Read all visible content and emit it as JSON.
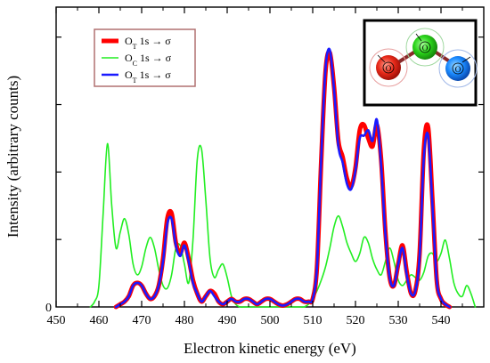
{
  "chart_data": {
    "type": "line",
    "xlabel": "Electron kinetic energy (eV)",
    "ylabel": "Intensity (arbitrary counts)",
    "xlim": [
      450,
      550
    ],
    "ylim": [
      0,
      1.12
    ],
    "x_ticks": [
      450,
      460,
      470,
      480,
      490,
      500,
      510,
      520,
      530,
      540
    ],
    "y_ticks": [
      0
    ],
    "legend_position": "top-left",
    "inset": {
      "position": "top-right",
      "atom_labels": [
        "O",
        "O",
        "O"
      ]
    },
    "series": [
      {
        "name": "O",
        "name_sub": "T",
        "name_rest": " 1s → σ",
        "color": "#ff0000",
        "x": [
          464,
          465,
          466,
          467,
          468,
          469,
          470,
          471,
          472,
          473,
          474,
          475,
          476,
          477,
          478,
          479,
          480,
          481,
          482,
          483,
          484,
          485,
          486,
          487,
          488,
          489,
          490,
          491,
          492,
          493,
          494,
          495,
          496,
          497,
          498,
          499,
          500,
          501,
          502,
          503,
          504,
          505,
          506,
          507,
          508,
          509,
          510,
          511,
          512,
          513,
          514,
          515,
          516,
          517,
          518,
          519,
          520,
          521,
          522,
          523,
          524,
          525,
          526,
          527,
          528,
          529,
          530,
          531,
          532,
          533,
          534,
          535,
          536,
          537,
          538,
          539,
          540,
          541,
          542
        ],
        "y": [
          0.0,
          0.01,
          0.02,
          0.04,
          0.08,
          0.09,
          0.08,
          0.05,
          0.03,
          0.04,
          0.08,
          0.18,
          0.33,
          0.35,
          0.24,
          0.2,
          0.24,
          0.18,
          0.1,
          0.05,
          0.02,
          0.04,
          0.06,
          0.05,
          0.02,
          0.01,
          0.02,
          0.03,
          0.02,
          0.02,
          0.03,
          0.03,
          0.02,
          0.01,
          0.02,
          0.03,
          0.03,
          0.02,
          0.01,
          0.005,
          0.01,
          0.02,
          0.03,
          0.03,
          0.02,
          0.02,
          0.03,
          0.15,
          0.55,
          0.88,
          0.95,
          0.82,
          0.62,
          0.56,
          0.48,
          0.45,
          0.52,
          0.66,
          0.68,
          0.63,
          0.6,
          0.68,
          0.55,
          0.28,
          0.11,
          0.08,
          0.16,
          0.23,
          0.13,
          0.05,
          0.06,
          0.2,
          0.59,
          0.67,
          0.4,
          0.1,
          0.03,
          0.01,
          0.0
        ]
      },
      {
        "name": "O",
        "name_sub": "C",
        "name_rest": " 1s → σ",
        "color": "#22ee22",
        "x": [
          458,
          459,
          460,
          461,
          462,
          463,
          464,
          465,
          466,
          467,
          468,
          469,
          470,
          471,
          472,
          473,
          474,
          475,
          476,
          477,
          478,
          479,
          480,
          481,
          482,
          483,
          484,
          485,
          486,
          487,
          488,
          489,
          490,
          491,
          492,
          493,
          494,
          495,
          496,
          497,
          498,
          499,
          500,
          501,
          502,
          503,
          504,
          505,
          506,
          507,
          508,
          509,
          510,
          511,
          512,
          513,
          514,
          515,
          516,
          517,
          518,
          519,
          520,
          521,
          522,
          523,
          524,
          525,
          526,
          527,
          528,
          529,
          530,
          531,
          532,
          533,
          534,
          535,
          536,
          537,
          538,
          539,
          540,
          541,
          542,
          543,
          544,
          545,
          546,
          547,
          548
        ],
        "y": [
          0.0,
          0.02,
          0.08,
          0.35,
          0.61,
          0.38,
          0.22,
          0.28,
          0.33,
          0.27,
          0.16,
          0.12,
          0.15,
          0.22,
          0.26,
          0.22,
          0.14,
          0.08,
          0.07,
          0.12,
          0.22,
          0.23,
          0.16,
          0.09,
          0.25,
          0.55,
          0.59,
          0.4,
          0.18,
          0.11,
          0.14,
          0.16,
          0.11,
          0.04,
          0.01,
          0.0,
          0.0,
          0.0,
          0.0,
          0.0,
          0.0,
          0.0,
          0.0,
          0.0,
          0.0,
          0.0,
          0.0,
          0.0,
          0.0,
          0.0,
          0.0,
          0.01,
          0.03,
          0.06,
          0.1,
          0.15,
          0.22,
          0.3,
          0.34,
          0.3,
          0.24,
          0.2,
          0.17,
          0.2,
          0.26,
          0.24,
          0.18,
          0.14,
          0.12,
          0.17,
          0.22,
          0.17,
          0.1,
          0.08,
          0.1,
          0.12,
          0.11,
          0.1,
          0.13,
          0.19,
          0.2,
          0.17,
          0.2,
          0.25,
          0.18,
          0.09,
          0.05,
          0.04,
          0.08,
          0.05,
          0.0
        ]
      },
      {
        "name": "O",
        "name_sub": "T",
        "name_rest": " 1s → σ",
        "color": "#1a1aff",
        "x": [
          464,
          465,
          466,
          467,
          468,
          469,
          470,
          471,
          472,
          473,
          474,
          475,
          476,
          477,
          478,
          479,
          480,
          481,
          482,
          483,
          484,
          485,
          486,
          487,
          488,
          489,
          490,
          491,
          492,
          493,
          494,
          495,
          496,
          497,
          498,
          499,
          500,
          501,
          502,
          503,
          504,
          505,
          506,
          507,
          508,
          509,
          510,
          511,
          512,
          513,
          514,
          515,
          516,
          517,
          518,
          519,
          520,
          521,
          522,
          523,
          524,
          525,
          526,
          527,
          528,
          529,
          530,
          531,
          532,
          533,
          534,
          535,
          536,
          537,
          538,
          539,
          540,
          541,
          542
        ],
        "y": [
          0.0,
          0.01,
          0.02,
          0.04,
          0.08,
          0.09,
          0.08,
          0.05,
          0.03,
          0.04,
          0.08,
          0.17,
          0.31,
          0.33,
          0.23,
          0.19,
          0.23,
          0.17,
          0.09,
          0.05,
          0.02,
          0.04,
          0.06,
          0.04,
          0.02,
          0.01,
          0.02,
          0.03,
          0.02,
          0.02,
          0.03,
          0.03,
          0.02,
          0.01,
          0.02,
          0.03,
          0.03,
          0.02,
          0.01,
          0.005,
          0.01,
          0.02,
          0.03,
          0.03,
          0.02,
          0.02,
          0.03,
          0.15,
          0.56,
          0.89,
          0.96,
          0.81,
          0.6,
          0.54,
          0.46,
          0.44,
          0.51,
          0.63,
          0.64,
          0.66,
          0.62,
          0.7,
          0.53,
          0.27,
          0.11,
          0.08,
          0.16,
          0.22,
          0.12,
          0.05,
          0.06,
          0.19,
          0.56,
          0.64,
          0.38,
          0.1,
          0.03,
          0.01,
          0.0
        ]
      }
    ]
  }
}
